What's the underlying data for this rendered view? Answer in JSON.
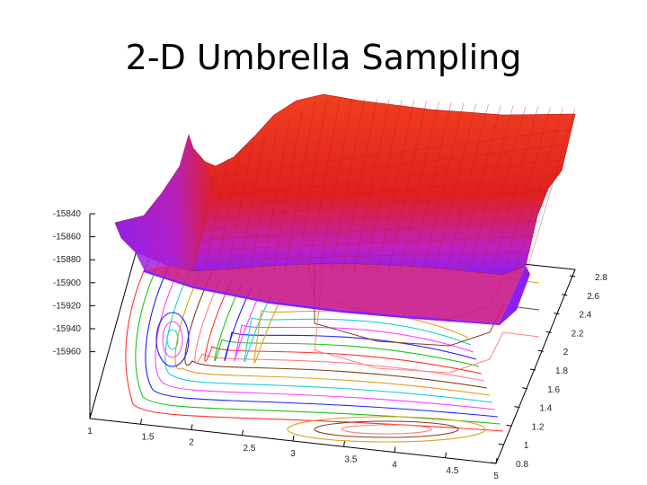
{
  "slide": {
    "title": "2-D Umbrella Sampling"
  },
  "chart_data": {
    "type": "surface3d",
    "title": "2-D Umbrella Sampling",
    "z_ticks": [
      "-15840",
      "-15860",
      "-15880",
      "-15900",
      "-15920",
      "-15940",
      "-15960"
    ],
    "x_ticks": [
      "1",
      "1.5",
      "2",
      "2.5",
      "3",
      "3.5",
      "4",
      "4.5",
      "5"
    ],
    "y_ticks": [
      "0.8",
      "1",
      "1.2",
      "1.4",
      "1.6",
      "1.8",
      "2",
      "2.2",
      "2.4",
      "2.6",
      "2.8"
    ],
    "xlim": [
      1,
      5
    ],
    "ylim": [
      0.8,
      2.8
    ],
    "zlim": [
      -15960,
      -15840
    ],
    "surface_colors": [
      "#ee2020",
      "#9a20ee"
    ],
    "contour_colors": [
      "#ff3030",
      "#20c020",
      "#2020ff",
      "#ff40ff",
      "#20d0d0",
      "#e0a020",
      "#804020",
      "#ff8080"
    ]
  }
}
